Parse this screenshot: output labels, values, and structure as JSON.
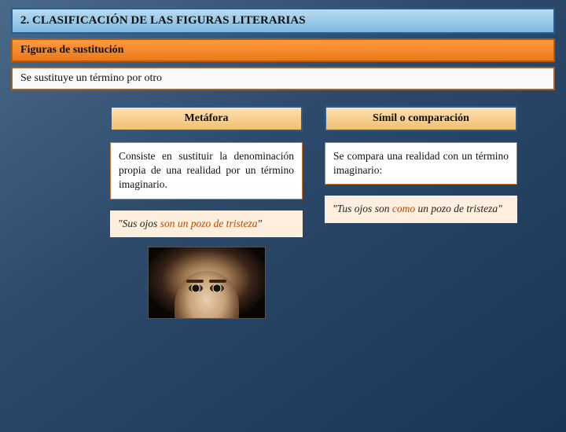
{
  "header": {
    "title": "2. CLASIFICACIÓN DE LAS FIGURAS LITERARIAS",
    "subtitle": "Figuras de sustitución",
    "intro": "Se sustituye un término por otro"
  },
  "columns": {
    "left": {
      "title": "Metáfora",
      "desc": "Consiste en sustituir la denominación propia de una realidad por un término imaginario.",
      "quote_prefix": "\"Sus ojos ",
      "quote_em": "son un pozo de tristeza",
      "quote_suffix": "\""
    },
    "right": {
      "title": "Símil o comparación",
      "desc": "Se compara una realidad con un término imaginario:",
      "quote_prefix": "\"Tus ojos son ",
      "quote_em": "como",
      "quote_suffix": " un pozo de tristeza\""
    }
  },
  "style": {
    "bg_gradient": [
      "#4a6a8a",
      "#2d4a6b",
      "#1a3555"
    ],
    "blue_header_bg": [
      "#b8dcf0",
      "#7cb8e0"
    ],
    "blue_header_border": "#2a5d8f",
    "orange_header_bg": [
      "#ff9a3c",
      "#e87a1a"
    ],
    "orange_header_border": "#c05800",
    "white_header_border": "#a86028",
    "col_title_bg": [
      "#ffe0b3",
      "#f0c070"
    ],
    "desc_border": "#d07830",
    "quote_bg": "#fdeedd",
    "quote_em_color": "#b84a00",
    "font_family": "Georgia",
    "title_fontsize": 15,
    "body_fontsize": 13.5
  }
}
